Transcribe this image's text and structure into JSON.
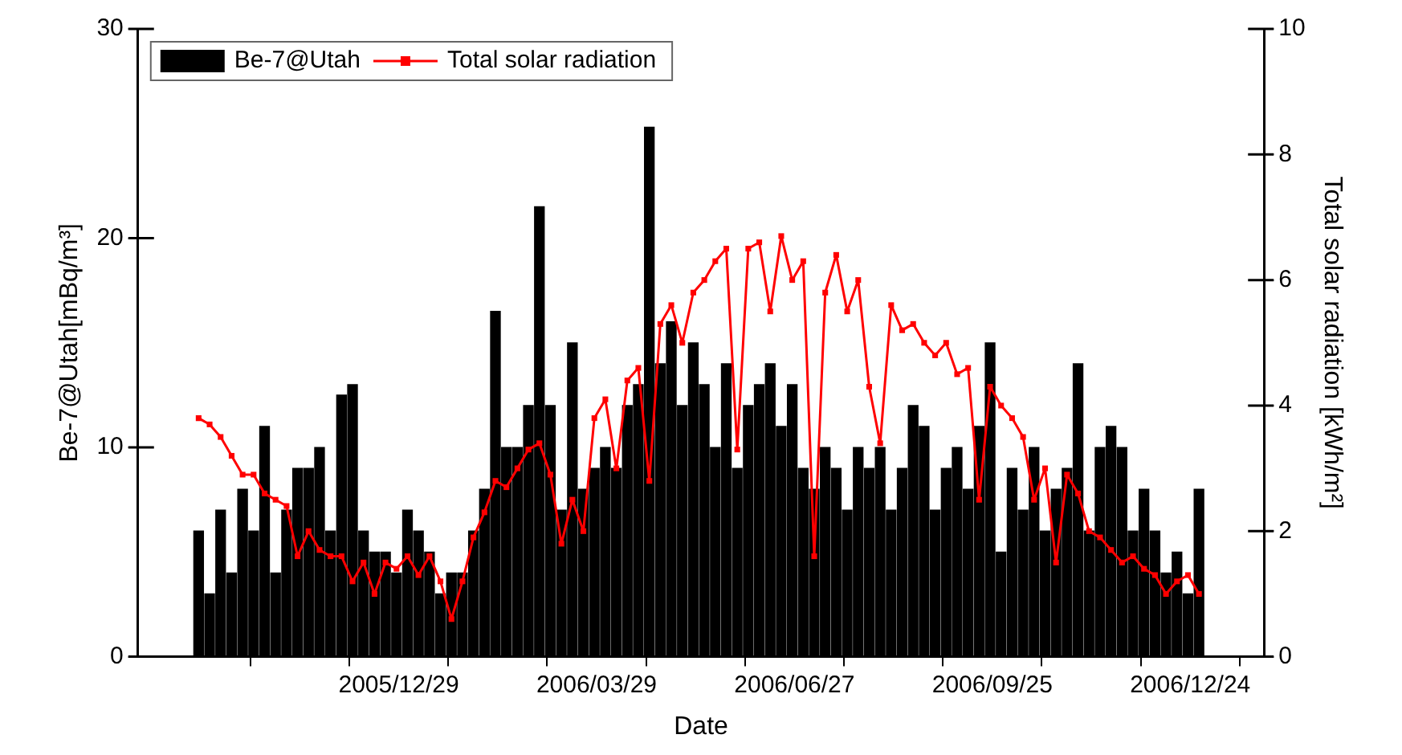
{
  "chart_data": {
    "type": "bar",
    "xlabel": "Date",
    "ylabel": "Be-7@Utah[mBq/m³]",
    "y2label": "Total solar radiation [kWh/m²]",
    "x": [
      "2005-09-29",
      "2005-10-04",
      "2005-10-09",
      "2005-10-14",
      "2005-10-19",
      "2005-10-24",
      "2005-10-29",
      "2005-11-03",
      "2005-11-08",
      "2005-11-13",
      "2005-11-18",
      "2005-11-23",
      "2005-11-28",
      "2005-12-03",
      "2005-12-08",
      "2005-12-13",
      "2005-12-18",
      "2005-12-23",
      "2005-12-28",
      "2006-01-02",
      "2006-01-07",
      "2006-01-12",
      "2006-01-17",
      "2006-01-22",
      "2006-01-27",
      "2006-02-01",
      "2006-02-06",
      "2006-02-11",
      "2006-02-16",
      "2006-02-21",
      "2006-02-26",
      "2006-03-03",
      "2006-03-08",
      "2006-03-13",
      "2006-03-18",
      "2006-03-23",
      "2006-03-28",
      "2006-04-02",
      "2006-04-07",
      "2006-04-12",
      "2006-04-17",
      "2006-04-22",
      "2006-04-27",
      "2006-05-02",
      "2006-05-07",
      "2006-05-12",
      "2006-05-17",
      "2006-05-22",
      "2006-05-27",
      "2006-06-01",
      "2006-06-06",
      "2006-06-11",
      "2006-06-16",
      "2006-06-21",
      "2006-06-26",
      "2006-07-01",
      "2006-07-06",
      "2006-07-11",
      "2006-07-16",
      "2006-07-21",
      "2006-07-26",
      "2006-07-31",
      "2006-08-05",
      "2006-08-10",
      "2006-08-15",
      "2006-08-20",
      "2006-08-25",
      "2006-08-30",
      "2006-09-04",
      "2006-09-09",
      "2006-09-14",
      "2006-09-19",
      "2006-09-24",
      "2006-09-29",
      "2006-10-04",
      "2006-10-09",
      "2006-10-14",
      "2006-10-19",
      "2006-10-24",
      "2006-10-29",
      "2006-11-03",
      "2006-11-08",
      "2006-11-13",
      "2006-11-18",
      "2006-11-23",
      "2006-11-28",
      "2006-12-03",
      "2006-12-08",
      "2006-12-13",
      "2006-12-18",
      "2006-12-23",
      "2006-12-28"
    ],
    "series": [
      {
        "name": "Be-7@Utah",
        "color": "#000000",
        "values": [
          6,
          3,
          7,
          4,
          8,
          6,
          11,
          4,
          7,
          9,
          9,
          10,
          6,
          12.5,
          13,
          6,
          5,
          5,
          4,
          7,
          6,
          5,
          3,
          4,
          4,
          6,
          8,
          16.5,
          10,
          10,
          12,
          21.5,
          12,
          7,
          15,
          8,
          9,
          10,
          9,
          12,
          13,
          25.3,
          14,
          16,
          12,
          15,
          13,
          10,
          14,
          9,
          12,
          13,
          14,
          11,
          13,
          9,
          8,
          10,
          9,
          7,
          10,
          9,
          10,
          7,
          9,
          12,
          11,
          7,
          9,
          10,
          8,
          11,
          15,
          5,
          9,
          7,
          10,
          6,
          8,
          9,
          14,
          6,
          10,
          11,
          10,
          6,
          8,
          6,
          4,
          5,
          3,
          8
        ]
      },
      {
        "name": "Total solar radiation",
        "type": "line",
        "axis": "y2",
        "color": "#ff0000",
        "marker": "square",
        "line_style": "solid",
        "values": [
          3.8,
          3.7,
          3.5,
          3.2,
          2.9,
          2.9,
          2.6,
          2.5,
          2.4,
          1.6,
          2.0,
          1.7,
          1.6,
          1.6,
          1.2,
          1.5,
          1.0,
          1.5,
          1.4,
          1.6,
          1.3,
          1.6,
          1.2,
          0.6,
          1.2,
          1.9,
          2.3,
          2.8,
          2.7,
          3.0,
          3.3,
          3.4,
          2.9,
          1.8,
          2.5,
          2.0,
          3.8,
          4.1,
          3.0,
          4.4,
          4.6,
          2.8,
          5.3,
          5.6,
          5.0,
          5.8,
          6.0,
          6.3,
          6.5,
          3.3,
          6.5,
          6.6,
          5.5,
          6.7,
          6.0,
          6.3,
          1.6,
          5.8,
          6.4,
          5.5,
          6.0,
          4.3,
          3.4,
          5.6,
          5.2,
          5.3,
          5.0,
          4.8,
          5.0,
          4.5,
          4.6,
          2.5,
          4.3,
          4.0,
          3.8,
          3.5,
          2.5,
          3.0,
          1.5,
          2.9,
          2.6,
          2.0,
          1.9,
          1.7,
          1.5,
          1.6,
          1.4,
          1.3,
          1.0,
          1.2,
          1.3,
          1.0
        ]
      }
    ],
    "xlim": [
      "2005-09-27",
      "2007-01-01"
    ],
    "xticks": [
      {
        "value": "2005-11-14",
        "label": null
      },
      {
        "value": "2005-12-29",
        "label": "2005/12/29"
      },
      {
        "value": "2006-02-12",
        "label": null
      },
      {
        "value": "2006-03-29",
        "label": "2006/03/29"
      },
      {
        "value": "2006-05-13",
        "label": null
      },
      {
        "value": "2006-06-27",
        "label": "2006/06/27"
      },
      {
        "value": "2006-08-11",
        "label": null
      },
      {
        "value": "2006-09-25",
        "label": "2006/09/25"
      },
      {
        "value": "2006-11-09",
        "label": null
      },
      {
        "value": "2006-12-24",
        "label": "2006/12/24"
      }
    ],
    "ylim": [
      0,
      30
    ],
    "yticks": [
      0,
      10,
      20,
      30
    ],
    "y2lim": [
      0,
      10
    ],
    "y2ticks": [
      0,
      2,
      4,
      6,
      8,
      10
    ],
    "grid": false,
    "legend": "top left"
  }
}
